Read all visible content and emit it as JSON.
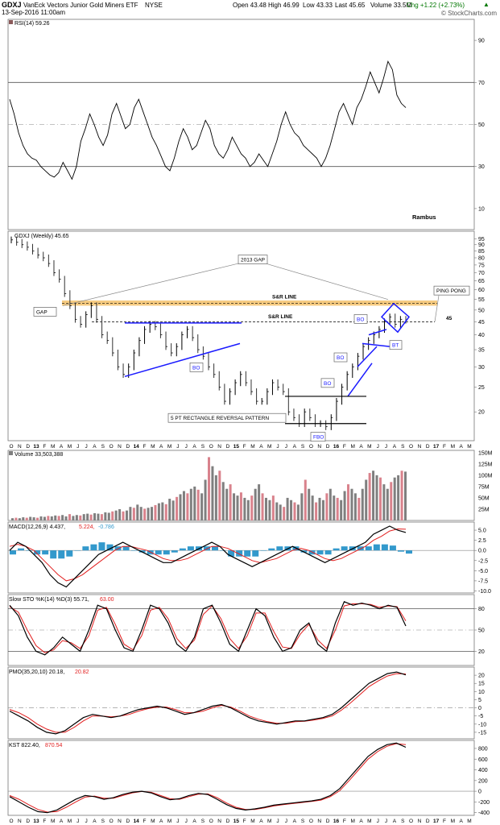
{
  "header": {
    "symbol": "GDXJ",
    "name": "VanEck Vectors Junior Gold Miners ETF",
    "exchange": "NYSE",
    "date": "13-Sep-2016 11:00am",
    "open": "Open 43.48",
    "high": "High 46.99",
    "low": "Low 43.33",
    "last": "Last 45.65",
    "volume": "Volume 33.5M",
    "change": "Chg +1.22 (+2.73%)",
    "copyright": "© StockCharts.com",
    "up_arrow": "▲"
  },
  "colors": {
    "up": "#000000",
    "down": "#cc0000",
    "volume_up": "#7f7f7f",
    "volume_down": "#d9828c",
    "rsi_fill_over": "#5a8a56",
    "rsi_fill_under": "#8b5a5a",
    "hist": "#3399cc",
    "sr": "#f5c26b",
    "blue": "#1a1aff",
    "signal": "#e21f1f"
  },
  "x_axis": {
    "ticks": [
      "O",
      "N",
      "D",
      "13",
      "F",
      "M",
      "A",
      "M",
      "J",
      "J",
      "A",
      "S",
      "O",
      "N",
      "D",
      "14",
      "F",
      "M",
      "A",
      "M",
      "J",
      "J",
      "A",
      "S",
      "O",
      "N",
      "D",
      "15",
      "F",
      "M",
      "A",
      "M",
      "J",
      "J",
      "A",
      "S",
      "O",
      "N",
      "D",
      "16",
      "F",
      "M",
      "A",
      "M",
      "J",
      "J",
      "A",
      "S",
      "O",
      "N",
      "D",
      "17",
      "F",
      "M",
      "A",
      "M"
    ]
  },
  "chart_data": [
    {
      "type": "line",
      "panel": "rsi",
      "title": "RSI(14) 59.26",
      "ylim": [
        0,
        100
      ],
      "y_ticks": [
        "90",
        "70",
        "50",
        "30",
        "10"
      ],
      "signature": "Rambus",
      "values": [
        62,
        55,
        46,
        40,
        36,
        34,
        33,
        30,
        28,
        26,
        25,
        27,
        32,
        28,
        24,
        30,
        42,
        48,
        55,
        50,
        44,
        40,
        45,
        55,
        60,
        54,
        48,
        50,
        58,
        62,
        56,
        50,
        44,
        40,
        35,
        30,
        28,
        34,
        42,
        48,
        44,
        38,
        40,
        46,
        52,
        48,
        40,
        36,
        34,
        38,
        44,
        40,
        36,
        34,
        30,
        32,
        36,
        33,
        30,
        36,
        42,
        50,
        56,
        50,
        46,
        44,
        40,
        38,
        36,
        34,
        30,
        34,
        40,
        48,
        56,
        60,
        55,
        50,
        58,
        62,
        68,
        75,
        70,
        65,
        72,
        80,
        76,
        64,
        60,
        58
      ]
    },
    {
      "type": "line",
      "panel": "price",
      "title": "GDXJ (Weekly) 45.65",
      "y_ticks": [
        "95",
        "90",
        "85",
        "80",
        "75",
        "70",
        "65",
        "60",
        "55",
        "50",
        "45",
        "40",
        "35",
        "30",
        "25",
        "20"
      ],
      "values": [
        94,
        92,
        90,
        88,
        85,
        82,
        80,
        76,
        70,
        66,
        58,
        52,
        46,
        44,
        48,
        52,
        46,
        40,
        38,
        34,
        30,
        28,
        30,
        34,
        38,
        42,
        44,
        43,
        40,
        36,
        34,
        36,
        40,
        42,
        39,
        35,
        33,
        30,
        28,
        25,
        22,
        24,
        26,
        28,
        26,
        24,
        22,
        22,
        24,
        26,
        25,
        24,
        20,
        19,
        18,
        20,
        19,
        18,
        18,
        17.5,
        19,
        22,
        25,
        28,
        30,
        33,
        36,
        38,
        40,
        42,
        45,
        47,
        44,
        46,
        45.65
      ],
      "annotations": {
        "gap": "GAP",
        "gap2013": "2013 GAP",
        "sr1": "S&R LINE",
        "sr2": "S&R LINE",
        "sr_value": "45",
        "ping_pong": "PING PONG",
        "bo1": "BO",
        "bo2": "BO",
        "bo3": "BO",
        "bo4": "BO",
        "bt": "BT",
        "fbo": "FBO",
        "rect": "5 PT RECTANGLE REVERSAL PATTERN"
      }
    },
    {
      "type": "bar",
      "panel": "volume",
      "title": "Volume 33,503,388",
      "y_ticks": [
        "150M",
        "125M",
        "100M",
        "75M",
        "50M",
        "25M"
      ],
      "values": [
        5,
        6,
        5,
        7,
        6,
        8,
        7,
        6,
        9,
        8,
        10,
        9,
        11,
        10,
        12,
        9,
        14,
        10,
        12,
        11,
        14,
        15,
        13,
        16,
        15,
        14,
        18,
        17,
        20,
        22,
        25,
        20,
        22,
        30,
        28,
        35,
        30,
        26,
        28,
        30,
        34,
        38,
        40,
        36,
        48,
        44,
        52,
        58,
        65,
        60,
        70,
        75,
        68,
        60,
        90,
        140,
        120,
        100,
        110,
        85,
        70,
        80,
        60,
        55,
        62,
        50,
        45,
        55,
        70,
        80,
        60,
        50,
        45,
        55,
        40,
        35,
        30,
        50,
        45,
        40,
        35,
        60,
        90,
        70,
        55,
        40,
        50,
        45,
        60,
        70,
        55,
        50,
        45,
        65,
        80,
        70,
        60,
        50,
        70,
        90,
        105,
        110,
        100,
        95,
        80,
        70,
        85,
        95,
        100,
        110,
        108
      ]
    },
    {
      "type": "line",
      "panel": "macd",
      "title": "MACD(12,26,9) 4.437, 5.224, -0.786",
      "y_ticks": [
        "5.0",
        "2.5",
        "0.0",
        "-2.5",
        "-5.0",
        "-7.5",
        "-10.0"
      ],
      "macd": [
        0,
        2,
        1,
        -1,
        -3,
        -6,
        -8,
        -9,
        -7,
        -5,
        -3,
        -1,
        0,
        1,
        2,
        1,
        0,
        -1,
        -2,
        -3,
        -3,
        -2,
        -1,
        0,
        1,
        2,
        1,
        -1,
        -2,
        -3,
        -4,
        -3,
        -2,
        -1,
        0,
        1,
        0,
        -1,
        -2,
        -3,
        -2,
        -1,
        0,
        1,
        2,
        4,
        5,
        6,
        5,
        4.437
      ],
      "signal": [
        1,
        1.5,
        1,
        0,
        -2,
        -4,
        -6,
        -7.5,
        -7,
        -6,
        -4.5,
        -3,
        -1.5,
        0,
        1,
        1,
        0.5,
        0,
        -1,
        -2,
        -2.5,
        -2.5,
        -2,
        -1,
        0,
        1,
        1,
        0.5,
        -0.5,
        -1.5,
        -2.5,
        -3,
        -2.5,
        -2,
        -1,
        0,
        0.5,
        0,
        -1,
        -2,
        -2.5,
        -2,
        -1,
        0,
        1,
        2.5,
        3.5,
        4.8,
        5.3,
        5.224
      ]
    },
    {
      "type": "line",
      "panel": "sto",
      "title": "Slow STO %K(14) %D(3) 55.71, 63.00",
      "y_ticks": [
        "80",
        "50",
        "20"
      ],
      "k": [
        85,
        70,
        40,
        20,
        15,
        25,
        40,
        30,
        20,
        50,
        85,
        80,
        50,
        25,
        20,
        50,
        85,
        80,
        60,
        30,
        20,
        40,
        80,
        85,
        60,
        30,
        20,
        50,
        80,
        70,
        40,
        20,
        25,
        50,
        60,
        30,
        20,
        60,
        90,
        85,
        88,
        85,
        80,
        85,
        82,
        55.71
      ],
      "d": [
        83,
        75,
        50,
        28,
        18,
        22,
        35,
        32,
        24,
        42,
        78,
        82,
        58,
        30,
        22,
        42,
        78,
        82,
        66,
        38,
        24,
        36,
        72,
        84,
        66,
        38,
        24,
        42,
        74,
        74,
        48,
        26,
        24,
        44,
        58,
        36,
        24,
        50,
        84,
        87,
        87,
        86,
        82,
        84,
        83,
        63.0
      ]
    },
    {
      "type": "line",
      "panel": "pmo",
      "title": "PMO(35,20,10) 20.18, 20.82",
      "y_ticks": [
        "20",
        "15",
        "10",
        "5",
        "0",
        "-5",
        "-10",
        "-15"
      ],
      "pmo": [
        -2,
        -5,
        -8,
        -12,
        -15,
        -16,
        -14,
        -10,
        -6,
        -4,
        -5,
        -6,
        -5,
        -3,
        -1,
        0,
        1,
        0,
        -2,
        -4,
        -3,
        -1,
        1,
        2,
        0,
        -3,
        -6,
        -8,
        -9,
        -10,
        -9,
        -8,
        -8,
        -7,
        -6,
        -4,
        0,
        5,
        10,
        15,
        18,
        21,
        22,
        20.18
      ],
      "signal": [
        -1,
        -3,
        -6,
        -10,
        -13,
        -15,
        -15,
        -12,
        -8,
        -5,
        -5,
        -5.5,
        -5,
        -4,
        -2,
        -0.5,
        0.5,
        0.5,
        -1,
        -3,
        -3,
        -2,
        0,
        1.5,
        0.5,
        -2,
        -5,
        -7,
        -8.5,
        -9.5,
        -9.5,
        -8.5,
        -8.2,
        -7.5,
        -6.5,
        -5,
        -1.5,
        3,
        8,
        13,
        16.5,
        19.5,
        21,
        20.82
      ]
    },
    {
      "type": "line",
      "panel": "kst",
      "title": "KST 822.40, 870.54",
      "y_ticks": [
        "800",
        "600",
        "400",
        "200",
        "0",
        "-200",
        "-400"
      ],
      "kst": [
        -100,
        -200,
        -300,
        -380,
        -400,
        -350,
        -250,
        -150,
        -80,
        -100,
        -150,
        -120,
        -60,
        -20,
        0,
        -30,
        -100,
        -160,
        -140,
        -80,
        -40,
        -60,
        -150,
        -250,
        -320,
        -350,
        -330,
        -300,
        -260,
        -240,
        -220,
        -200,
        -180,
        -150,
        -80,
        50,
        250,
        450,
        650,
        780,
        870,
        900,
        822.4
      ],
      "signal": [
        -80,
        -150,
        -250,
        -340,
        -390,
        -380,
        -300,
        -200,
        -110,
        -90,
        -130,
        -130,
        -80,
        -30,
        -5,
        -20,
        -80,
        -140,
        -150,
        -100,
        -55,
        -50,
        -120,
        -220,
        -300,
        -340,
        -340,
        -310,
        -275,
        -250,
        -230,
        -210,
        -190,
        -165,
        -100,
        10,
        200,
        400,
        600,
        740,
        840,
        890,
        870.54
      ]
    }
  ]
}
